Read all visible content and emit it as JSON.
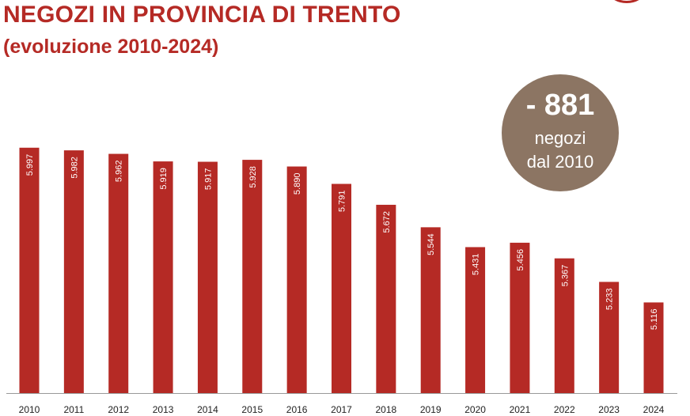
{
  "header": {
    "title": "NEGOZI IN PROVINCIA DI TRENTO",
    "subtitle": "(evoluzione 2010-2024)"
  },
  "badge": {
    "value": "- 881",
    "line1": "negozi",
    "line2": "dal 2010"
  },
  "colors": {
    "bar": "#b52a25",
    "title": "#b52a25",
    "badge": "#8c7563"
  },
  "chart_data": {
    "type": "bar",
    "title": "NEGOZI IN PROVINCIA DI TRENTO",
    "subtitle": "(evoluzione 2010-2024)",
    "categories": [
      "2010",
      "2011",
      "2012",
      "2013",
      "2014",
      "2015",
      "2016",
      "2017",
      "2018",
      "2019",
      "2020",
      "2021",
      "2022",
      "2023",
      "2024"
    ],
    "values": [
      5997,
      5982,
      5962,
      5919,
      5917,
      5928,
      5890,
      5791,
      5672,
      5544,
      5431,
      5456,
      5367,
      5233,
      5116
    ],
    "data_labels": [
      "5.997",
      "5.982",
      "5.962",
      "5.919",
      "5.917",
      "5.928",
      "5.890",
      "5.791",
      "5.672",
      "5.544",
      "5.431",
      "5.456",
      "5.367",
      "5.233",
      "5.116"
    ],
    "xlabel": "",
    "ylabel": "",
    "ylim": [
      4600,
      6050
    ],
    "grid": false,
    "legend": "none"
  }
}
